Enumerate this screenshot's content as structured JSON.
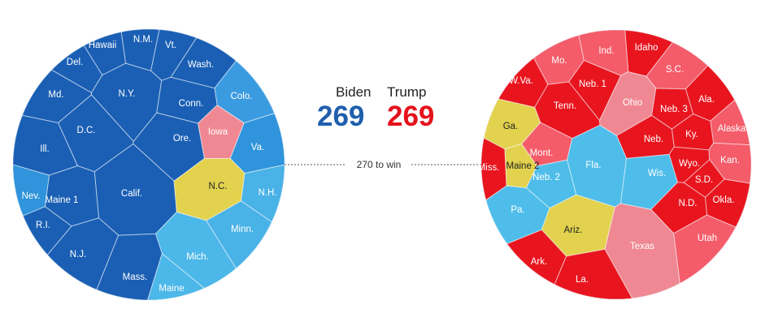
{
  "colors": {
    "dem_safe": "#1a5fb4",
    "dem_lean": "#3fa0dc",
    "dem_tossup": "#4fbbe8",
    "tossup": "#e0d24f",
    "rep_lean": "#ef8a93",
    "rep_likely": "#f05a68",
    "rep_safe": "#e8151f"
  },
  "tally": {
    "biden_label": "Biden",
    "trump_label": "Trump",
    "biden_votes": "269",
    "trump_votes": "269",
    "biden_color": "#1f5fad",
    "trump_color": "#e4121b"
  },
  "threshold_label": "270 to win",
  "left_states": [
    {
      "label": "Hawaii",
      "cat": "dem_safe"
    },
    {
      "label": "N.M.",
      "cat": "dem_safe"
    },
    {
      "label": "Vt.",
      "cat": "dem_safe"
    },
    {
      "label": "Del.",
      "cat": "dem_safe"
    },
    {
      "label": "Wash.",
      "cat": "dem_safe"
    },
    {
      "label": "Md.",
      "cat": "dem_safe"
    },
    {
      "label": "N.Y.",
      "cat": "dem_safe"
    },
    {
      "label": "Colo.",
      "cat": "dem_lean"
    },
    {
      "label": "Conn.",
      "cat": "dem_safe"
    },
    {
      "label": "D.C.",
      "cat": "dem_safe"
    },
    {
      "label": "Iowa",
      "cat": "rep_lean"
    },
    {
      "label": "Ore.",
      "cat": "dem_safe"
    },
    {
      "label": "Ill.",
      "cat": "dem_safe"
    },
    {
      "label": "Va.",
      "cat": "dem_lean"
    },
    {
      "label": "Calif.",
      "cat": "dem_safe"
    },
    {
      "label": "N.C.",
      "cat": "tossup"
    },
    {
      "label": "Nev.",
      "cat": "dem_lean"
    },
    {
      "label": "Maine 1",
      "cat": "dem_safe"
    },
    {
      "label": "N.H.",
      "cat": "dem_tossup"
    },
    {
      "label": "R.I.",
      "cat": "dem_safe"
    },
    {
      "label": "Minn.",
      "cat": "dem_tossup"
    },
    {
      "label": "N.J.",
      "cat": "dem_safe"
    },
    {
      "label": "Mich.",
      "cat": "dem_tossup"
    },
    {
      "label": "Mass.",
      "cat": "dem_safe"
    },
    {
      "label": "Maine",
      "cat": "dem_tossup"
    }
  ],
  "right_states": [
    {
      "label": "Idaho",
      "cat": "rep_safe"
    },
    {
      "label": "Mo.",
      "cat": "rep_likely"
    },
    {
      "label": "Ind.",
      "cat": "rep_likely"
    },
    {
      "label": "S.C.",
      "cat": "rep_likely"
    },
    {
      "label": "W.Va.",
      "cat": "rep_safe"
    },
    {
      "label": "Neb. 1",
      "cat": "rep_safe"
    },
    {
      "label": "Ohio",
      "cat": "rep_lean"
    },
    {
      "label": "Tenn.",
      "cat": "rep_safe"
    },
    {
      "label": "Neb. 3",
      "cat": "rep_safe"
    },
    {
      "label": "Ala.",
      "cat": "rep_safe"
    },
    {
      "label": "Ga.",
      "cat": "tossup"
    },
    {
      "label": "Alaska",
      "cat": "rep_likely"
    },
    {
      "label": "Ky.",
      "cat": "rep_safe"
    },
    {
      "label": "Neb.",
      "cat": "rep_safe"
    },
    {
      "label": "Mont.",
      "cat": "rep_likely"
    },
    {
      "label": "Kan.",
      "cat": "rep_likely"
    },
    {
      "label": "Miss.",
      "cat": "rep_safe"
    },
    {
      "label": "Maine 2",
      "cat": "tossup"
    },
    {
      "label": "Fla.",
      "cat": "dem_tossup"
    },
    {
      "label": "Wyo.",
      "cat": "rep_safe"
    },
    {
      "label": "Wis.",
      "cat": "dem_tossup"
    },
    {
      "label": "Neb. 2",
      "cat": "dem_tossup"
    },
    {
      "label": "S.D.",
      "cat": "rep_safe"
    },
    {
      "label": "N.D.",
      "cat": "rep_safe"
    },
    {
      "label": "Okla.",
      "cat": "rep_safe"
    },
    {
      "label": "Pa.",
      "cat": "dem_tossup"
    },
    {
      "label": "Ariz.",
      "cat": "tossup"
    },
    {
      "label": "Texas",
      "cat": "rep_lean"
    },
    {
      "label": "Utah",
      "cat": "rep_likely"
    },
    {
      "label": "Ark.",
      "cat": "rep_safe"
    },
    {
      "label": "La.",
      "cat": "rep_safe"
    }
  ]
}
